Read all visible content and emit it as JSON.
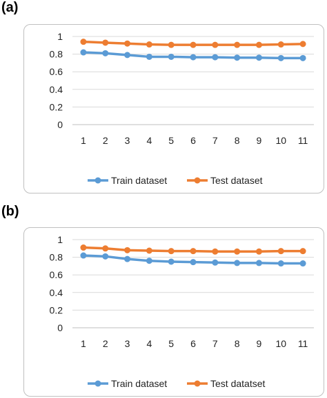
{
  "panels": {
    "a": {
      "label": "(a)"
    },
    "b": {
      "label": "(b)"
    }
  },
  "chart_data": [
    {
      "type": "line",
      "x": [
        1,
        2,
        3,
        4,
        5,
        6,
        7,
        8,
        9,
        10,
        11
      ],
      "ylim": [
        0,
        1
      ],
      "yticks": [
        "0",
        "0.2",
        "0.4",
        "0.6",
        "0.8",
        "1"
      ],
      "grid": true,
      "legend_position": "bottom",
      "series": [
        {
          "name": "Train dataset",
          "color": "#5B9BD5",
          "values": [
            0.82,
            0.81,
            0.79,
            0.77,
            0.77,
            0.765,
            0.765,
            0.76,
            0.76,
            0.755,
            0.755
          ]
        },
        {
          "name": "Test dataset",
          "color": "#ED7D31",
          "values": [
            0.94,
            0.93,
            0.92,
            0.91,
            0.905,
            0.905,
            0.905,
            0.905,
            0.905,
            0.91,
            0.915
          ]
        }
      ]
    },
    {
      "type": "line",
      "x": [
        1,
        2,
        3,
        4,
        5,
        6,
        7,
        8,
        9,
        10,
        11
      ],
      "ylim": [
        0,
        1
      ],
      "yticks": [
        "0",
        "0.2",
        "0.4",
        "0.6",
        "0.8",
        "1"
      ],
      "grid": true,
      "legend_position": "bottom",
      "series": [
        {
          "name": "Train dataset",
          "color": "#5B9BD5",
          "values": [
            0.82,
            0.81,
            0.78,
            0.76,
            0.75,
            0.745,
            0.74,
            0.735,
            0.735,
            0.73,
            0.73
          ]
        },
        {
          "name": "Test datatset",
          "color": "#ED7D31",
          "values": [
            0.91,
            0.9,
            0.88,
            0.875,
            0.87,
            0.87,
            0.865,
            0.865,
            0.865,
            0.87,
            0.87
          ]
        }
      ]
    }
  ]
}
